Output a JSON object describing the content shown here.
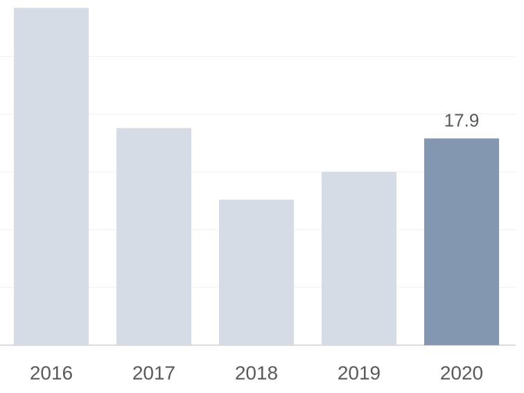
{
  "chart_data": {
    "type": "bar",
    "categories": [
      "2016",
      "2017",
      "2018",
      "2019",
      "2020"
    ],
    "values": [
      29.2,
      18.8,
      12.6,
      15.0,
      17.9
    ],
    "value_labels": [
      null,
      null,
      null,
      null,
      "17.9"
    ],
    "colors": [
      "#d6dce5",
      "#d6dce5",
      "#d6dce5",
      "#d6dce5",
      "#8497b0"
    ],
    "ylim": [
      0,
      30
    ],
    "yticks": [
      0,
      5,
      10,
      15,
      20,
      25
    ],
    "grid": true
  }
}
